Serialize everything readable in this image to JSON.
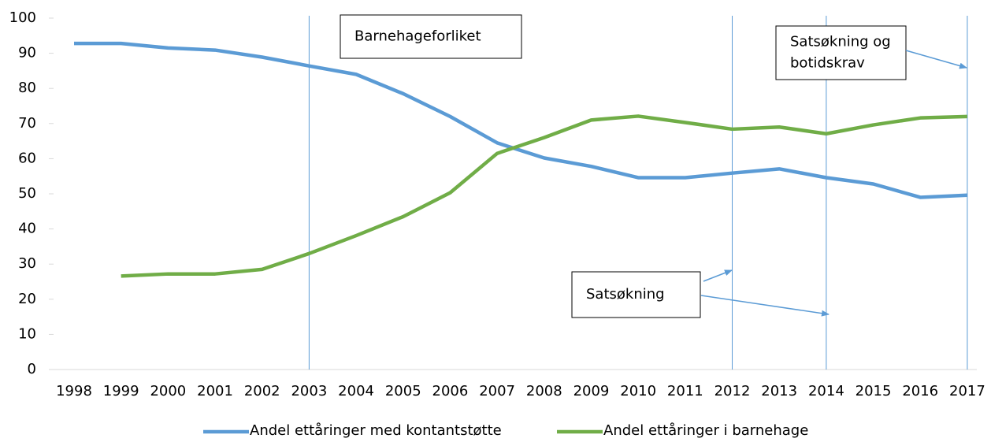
{
  "chart_data": {
    "type": "line",
    "categories": [
      "1998",
      "1999",
      "2000",
      "2001",
      "2002",
      "2003",
      "2004",
      "2005",
      "2006",
      "2007",
      "2008",
      "2009",
      "2010",
      "2011",
      "2012",
      "2013",
      "2014",
      "2015",
      "2016",
      "2017"
    ],
    "series": [
      {
        "name": "Andel ettåringer med kontantstøtte",
        "color": "#5b9bd5",
        "values": [
          92.8,
          92.8,
          91.5,
          90.9,
          88.9,
          86.4,
          84,
          78.5,
          72,
          64.5,
          60.2,
          57.8,
          54.6,
          54.6,
          55.9,
          57.1,
          54.6,
          52.8,
          49,
          49.6
        ]
      },
      {
        "name": "Andel ettåringer i barnehage",
        "color": "#70ad47",
        "values": [
          null,
          26.6,
          27.2,
          27.2,
          28.5,
          33,
          38.1,
          43.5,
          50.3,
          61.5,
          66,
          71,
          72.1,
          70.3,
          68.4,
          69,
          67.1,
          69.6,
          71.6,
          72
        ]
      }
    ],
    "ylim": [
      0,
      100
    ],
    "yticks": [
      0,
      10,
      20,
      30,
      40,
      50,
      60,
      70,
      80,
      90,
      100
    ],
    "event_lines": [
      2003,
      2012,
      2014,
      2017
    ],
    "event_line_color": "#5b9bd5",
    "annotations": [
      {
        "lines": [
          "Barnehageforliket"
        ]
      },
      {
        "lines": [
          "Satsøkning og",
          "botidskrav"
        ]
      },
      {
        "lines": [
          "Satsøkning"
        ]
      }
    ],
    "legend": "bottom"
  }
}
